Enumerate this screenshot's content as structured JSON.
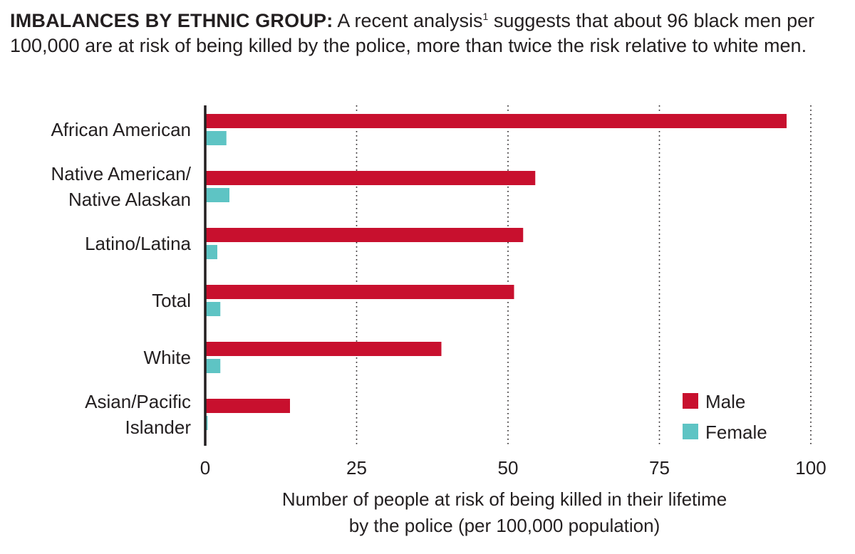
{
  "headline": {
    "lead": "IMBALANCES BY ETHNIC GROUP:",
    "text_before_ref": " A recent analysis",
    "ref": "1",
    "text_after_ref": " suggests that about 96 black men per 100,000 are at risk of being killed by the police, more than twice the risk relative to white men."
  },
  "colors": {
    "male": "#c8102e",
    "female": "#5ec4c4",
    "axis": "#231f20",
    "grid": "#231f20"
  },
  "chart_data": {
    "type": "bar",
    "orientation": "horizontal",
    "categories": [
      [
        "African American"
      ],
      [
        "Native American/",
        "Native Alaskan"
      ],
      [
        "Latino/Latina"
      ],
      [
        "Total"
      ],
      [
        "White"
      ],
      [
        "Asian/Pacific",
        "Islander"
      ]
    ],
    "series": [
      {
        "name": "Male",
        "values": [
          96,
          54.5,
          52.5,
          51,
          39,
          14
        ]
      },
      {
        "name": "Female",
        "values": [
          3.5,
          4,
          2,
          2.5,
          2.5,
          0.4
        ]
      }
    ],
    "xlim": [
      0,
      100
    ],
    "xticks": [
      0,
      25,
      50,
      75,
      100
    ],
    "xlabel": [
      "Number of people at risk of being killed in their lifetime",
      "by the police (per 100,000 population)"
    ],
    "grid": "vertical dotted",
    "legend_position": "bottom-right"
  }
}
